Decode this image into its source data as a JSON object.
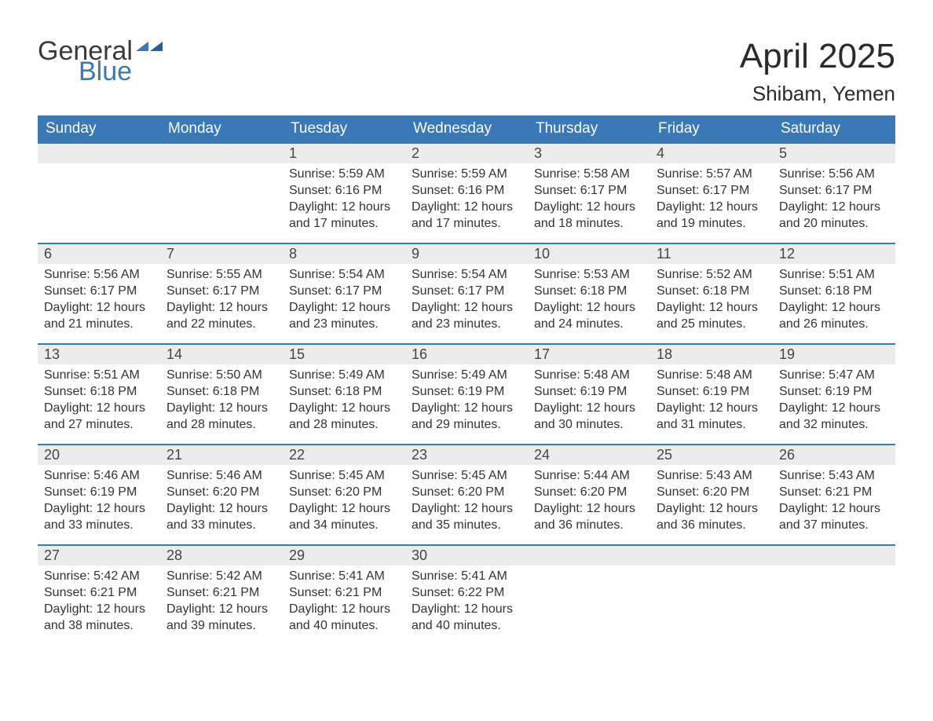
{
  "logo": {
    "word1": "General",
    "word2": "Blue"
  },
  "title": "April 2025",
  "location": "Shibam, Yemen",
  "colors": {
    "header_bg": "#3b78b8",
    "header_text": "#ffffff",
    "band_bg": "#ececec",
    "row_border": "#3b78b8",
    "text": "#333333"
  },
  "weekdays": [
    "Sunday",
    "Monday",
    "Tuesday",
    "Wednesday",
    "Thursday",
    "Friday",
    "Saturday"
  ],
  "weeks": [
    [
      null,
      null,
      {
        "n": "1",
        "sunrise": "5:59 AM",
        "sunset": "6:16 PM",
        "day_h": "12",
        "day_m": "17"
      },
      {
        "n": "2",
        "sunrise": "5:59 AM",
        "sunset": "6:16 PM",
        "day_h": "12",
        "day_m": "17"
      },
      {
        "n": "3",
        "sunrise": "5:58 AM",
        "sunset": "6:17 PM",
        "day_h": "12",
        "day_m": "18"
      },
      {
        "n": "4",
        "sunrise": "5:57 AM",
        "sunset": "6:17 PM",
        "day_h": "12",
        "day_m": "19"
      },
      {
        "n": "5",
        "sunrise": "5:56 AM",
        "sunset": "6:17 PM",
        "day_h": "12",
        "day_m": "20"
      }
    ],
    [
      {
        "n": "6",
        "sunrise": "5:56 AM",
        "sunset": "6:17 PM",
        "day_h": "12",
        "day_m": "21"
      },
      {
        "n": "7",
        "sunrise": "5:55 AM",
        "sunset": "6:17 PM",
        "day_h": "12",
        "day_m": "22"
      },
      {
        "n": "8",
        "sunrise": "5:54 AM",
        "sunset": "6:17 PM",
        "day_h": "12",
        "day_m": "23"
      },
      {
        "n": "9",
        "sunrise": "5:54 AM",
        "sunset": "6:17 PM",
        "day_h": "12",
        "day_m": "23"
      },
      {
        "n": "10",
        "sunrise": "5:53 AM",
        "sunset": "6:18 PM",
        "day_h": "12",
        "day_m": "24"
      },
      {
        "n": "11",
        "sunrise": "5:52 AM",
        "sunset": "6:18 PM",
        "day_h": "12",
        "day_m": "25"
      },
      {
        "n": "12",
        "sunrise": "5:51 AM",
        "sunset": "6:18 PM",
        "day_h": "12",
        "day_m": "26"
      }
    ],
    [
      {
        "n": "13",
        "sunrise": "5:51 AM",
        "sunset": "6:18 PM",
        "day_h": "12",
        "day_m": "27"
      },
      {
        "n": "14",
        "sunrise": "5:50 AM",
        "sunset": "6:18 PM",
        "day_h": "12",
        "day_m": "28"
      },
      {
        "n": "15",
        "sunrise": "5:49 AM",
        "sunset": "6:18 PM",
        "day_h": "12",
        "day_m": "28"
      },
      {
        "n": "16",
        "sunrise": "5:49 AM",
        "sunset": "6:19 PM",
        "day_h": "12",
        "day_m": "29"
      },
      {
        "n": "17",
        "sunrise": "5:48 AM",
        "sunset": "6:19 PM",
        "day_h": "12",
        "day_m": "30"
      },
      {
        "n": "18",
        "sunrise": "5:48 AM",
        "sunset": "6:19 PM",
        "day_h": "12",
        "day_m": "31"
      },
      {
        "n": "19",
        "sunrise": "5:47 AM",
        "sunset": "6:19 PM",
        "day_h": "12",
        "day_m": "32"
      }
    ],
    [
      {
        "n": "20",
        "sunrise": "5:46 AM",
        "sunset": "6:19 PM",
        "day_h": "12",
        "day_m": "33"
      },
      {
        "n": "21",
        "sunrise": "5:46 AM",
        "sunset": "6:20 PM",
        "day_h": "12",
        "day_m": "33"
      },
      {
        "n": "22",
        "sunrise": "5:45 AM",
        "sunset": "6:20 PM",
        "day_h": "12",
        "day_m": "34"
      },
      {
        "n": "23",
        "sunrise": "5:45 AM",
        "sunset": "6:20 PM",
        "day_h": "12",
        "day_m": "35"
      },
      {
        "n": "24",
        "sunrise": "5:44 AM",
        "sunset": "6:20 PM",
        "day_h": "12",
        "day_m": "36"
      },
      {
        "n": "25",
        "sunrise": "5:43 AM",
        "sunset": "6:20 PM",
        "day_h": "12",
        "day_m": "36"
      },
      {
        "n": "26",
        "sunrise": "5:43 AM",
        "sunset": "6:21 PM",
        "day_h": "12",
        "day_m": "37"
      }
    ],
    [
      {
        "n": "27",
        "sunrise": "5:42 AM",
        "sunset": "6:21 PM",
        "day_h": "12",
        "day_m": "38"
      },
      {
        "n": "28",
        "sunrise": "5:42 AM",
        "sunset": "6:21 PM",
        "day_h": "12",
        "day_m": "39"
      },
      {
        "n": "29",
        "sunrise": "5:41 AM",
        "sunset": "6:21 PM",
        "day_h": "12",
        "day_m": "40"
      },
      {
        "n": "30",
        "sunrise": "5:41 AM",
        "sunset": "6:22 PM",
        "day_h": "12",
        "day_m": "40"
      },
      null,
      null,
      null
    ]
  ],
  "labels": {
    "sunrise": "Sunrise: ",
    "sunset": "Sunset: ",
    "daylight1": "Daylight: ",
    "daylight_hours": " hours",
    "daylight_and": "and ",
    "daylight_minutes": " minutes."
  }
}
